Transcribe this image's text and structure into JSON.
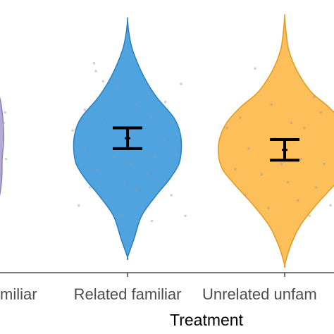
{
  "chart_data": {
    "type": "violin",
    "xlabel": "Treatment",
    "ylabel": "",
    "categories": [
      "Unrelated familiar",
      "Related familiar",
      "Unrelated unfamiliar"
    ],
    "tick_labels_visible": [
      "miliar",
      "Related familiar",
      "Unrelated unfam"
    ],
    "colors": [
      "#b7aad8",
      "#4fa3df",
      "#fcbf5a"
    ],
    "edge_colors": [
      "#8c7fb8",
      "#2b7fc0",
      "#e39a1f"
    ],
    "ylim": [
      0,
      1
    ],
    "violins": [
      {
        "name": "Unrelated familiar",
        "profile": [
          [
            0.76,
            0.02
          ],
          [
            0.72,
            0.1
          ],
          [
            0.66,
            0.18
          ],
          [
            0.6,
            0.22
          ],
          [
            0.52,
            0.24
          ],
          [
            0.44,
            0.21
          ],
          [
            0.36,
            0.2
          ],
          [
            0.28,
            0.14
          ],
          [
            0.22,
            0.04
          ]
        ],
        "points": [
          [
            0.15,
            0.66
          ],
          [
            0.25,
            0.58
          ],
          [
            0.1,
            0.5
          ],
          [
            0.3,
            0.44
          ],
          [
            0.2,
            0.38
          ],
          [
            0.12,
            0.3
          ],
          [
            0.28,
            0.62
          ],
          [
            0.05,
            0.55
          ],
          [
            0.22,
            0.46
          ],
          [
            0.18,
            0.34
          ]
        ]
      },
      {
        "name": "Related familiar",
        "profile": [
          [
            0.98,
            0.0
          ],
          [
            0.93,
            0.02
          ],
          [
            0.86,
            0.08
          ],
          [
            0.76,
            0.25
          ],
          [
            0.68,
            0.45
          ],
          [
            0.6,
            0.72
          ],
          [
            0.54,
            0.82
          ],
          [
            0.48,
            0.84
          ],
          [
            0.42,
            0.8
          ],
          [
            0.36,
            0.65
          ],
          [
            0.3,
            0.45
          ],
          [
            0.22,
            0.22
          ],
          [
            0.13,
            0.1
          ],
          [
            0.06,
            0.0
          ]
        ],
        "median": 0.52,
        "ci": [
          0.48,
          0.56
        ],
        "points": [
          [
            -0.55,
            0.81
          ],
          [
            -0.52,
            0.78
          ],
          [
            -0.4,
            0.74
          ],
          [
            0.36,
            0.69
          ],
          [
            0.62,
            0.66
          ],
          [
            0.88,
            0.73
          ],
          [
            -0.18,
            0.72
          ],
          [
            -0.7,
            0.63
          ],
          [
            0.4,
            0.6
          ],
          [
            0.72,
            0.58
          ],
          [
            -0.9,
            0.55
          ],
          [
            -0.38,
            0.58
          ],
          [
            0.15,
            0.65
          ],
          [
            0.6,
            0.51
          ],
          [
            0.45,
            0.45
          ],
          [
            0.78,
            0.48
          ],
          [
            -0.7,
            0.48
          ],
          [
            -0.22,
            0.45
          ],
          [
            0.05,
            0.42
          ],
          [
            -0.5,
            0.4
          ],
          [
            0.32,
            0.38
          ],
          [
            0.82,
            0.41
          ],
          [
            0.5,
            0.33
          ],
          [
            -0.62,
            0.33
          ],
          [
            0.14,
            0.32
          ],
          [
            0.72,
            0.3
          ],
          [
            -0.35,
            0.28
          ],
          [
            0.25,
            0.25
          ],
          [
            -0.12,
            0.22
          ],
          [
            0.4,
            0.2
          ],
          [
            0.95,
            0.22
          ],
          [
            -0.8,
            0.26
          ],
          [
            0.1,
            0.55
          ],
          [
            -0.05,
            0.35
          ]
        ]
      },
      {
        "name": "Unrelated unfamiliar",
        "profile": [
          [
            0.99,
            0.0
          ],
          [
            0.93,
            0.02
          ],
          [
            0.86,
            0.06
          ],
          [
            0.78,
            0.18
          ],
          [
            0.7,
            0.38
          ],
          [
            0.64,
            0.64
          ],
          [
            0.58,
            0.84
          ],
          [
            0.52,
            0.94
          ],
          [
            0.46,
            0.96
          ],
          [
            0.4,
            0.9
          ],
          [
            0.34,
            0.72
          ],
          [
            0.26,
            0.45
          ],
          [
            0.18,
            0.22
          ],
          [
            0.1,
            0.08
          ],
          [
            0.03,
            0.0
          ]
        ],
        "median": 0.475,
        "ci": [
          0.435,
          0.515
        ],
        "points": [
          [
            -0.45,
            0.79
          ],
          [
            0.45,
            0.68
          ],
          [
            0.85,
            0.74
          ],
          [
            -0.68,
            0.6
          ],
          [
            -0.88,
            0.56
          ],
          [
            0.55,
            0.62
          ],
          [
            -0.2,
            0.65
          ],
          [
            0.3,
            0.56
          ],
          [
            0.78,
            0.5
          ],
          [
            -0.55,
            0.48
          ],
          [
            -0.15,
            0.52
          ],
          [
            0.25,
            0.44
          ],
          [
            0.6,
            0.42
          ],
          [
            -0.75,
            0.4
          ],
          [
            -0.35,
            0.38
          ],
          [
            0.05,
            0.35
          ],
          [
            0.48,
            0.33
          ],
          [
            -0.6,
            0.3
          ],
          [
            0.2,
            0.28
          ],
          [
            -0.25,
            0.25
          ],
          [
            0.7,
            0.26
          ],
          [
            0.1,
            0.58
          ],
          [
            -0.05,
            0.42
          ],
          [
            0.38,
            0.22
          ]
        ]
      }
    ]
  }
}
